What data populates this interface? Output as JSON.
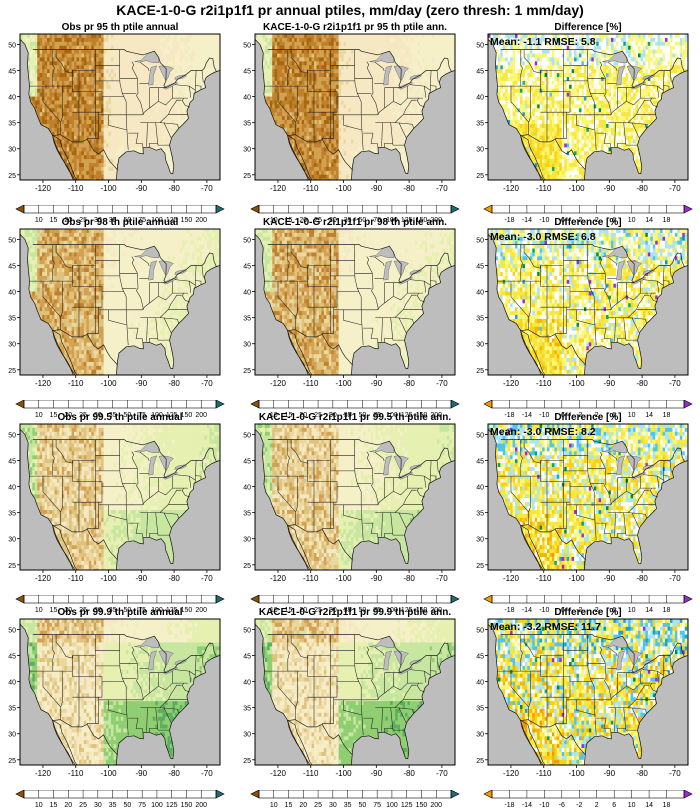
{
  "title": "KACE-1-0-G r2i1p1f1 pr annual ptiles, mm/day (zero thresh: 1 mm/day)",
  "panel_titles": [
    [
      "Obs pr 95 th ptile annual",
      "KACE-1-0-G r2i1p1f1 pr 95 th ptile ann.",
      "Difference [%]"
    ],
    [
      "Obs pr 98 th ptile annual",
      "KACE-1-0-G r2i1p1f1 pr 98 th ptile ann.",
      "Difference [%]"
    ],
    [
      "Obs pr 99.5 th ptile annual",
      "KACE-1-0-G r2i1p1f1 pr 99.5 th ptile ann.",
      "Difference [%]"
    ],
    [
      "Obs pr 99.9 th ptile annual",
      "KACE-1-0-G r2i1p1f1 pr 99.9 th ptile ann.",
      "Difference [%]"
    ]
  ],
  "stats": [
    "Mean: -1.1  RMSE: 5.8",
    "Mean: -3.0  RMSE: 6.8",
    "Mean: -3.0  RMSE: 8.2",
    "Mean: -3.2  RMSE: 11.7"
  ],
  "colors": {
    "ocean": "#bdbdbd",
    "lakes": "#bdbdbd",
    "border": "#222222"
  },
  "chart_data": {
    "type": "heatmap",
    "map_region": "contiguous United States",
    "lon_ticks": [
      "-120",
      "-110",
      "-100",
      "-90",
      "-80",
      "-70"
    ],
    "lat_ticks": [
      "50",
      "45",
      "40",
      "35",
      "30",
      "25"
    ],
    "lon_range": [
      -127,
      -66
    ],
    "lat_range": [
      24,
      52
    ],
    "columns": [
      "Obs",
      "KACE-1-0-G r2i1p1f1",
      "Difference [%]"
    ],
    "percentiles": [
      "95",
      "98",
      "99.5",
      "99.9"
    ],
    "precip_colorbar": {
      "labels": [
        "10",
        "15",
        "20",
        "25",
        "30",
        "35",
        "50",
        "75",
        "100",
        "125",
        "150",
        "200"
      ],
      "colors": [
        "#8c510a",
        "#a8670d",
        "#bf812d",
        "#d3a150",
        "#dfc27d",
        "#ebd89f",
        "#f6e8c3",
        "#f5f0c8",
        "#e6f0b0",
        "#c7e6a0",
        "#8fcf72",
        "#5aae61",
        "#35978f",
        "#1f6b75"
      ]
    },
    "diff_colorbar": {
      "labels": [
        "-18",
        "-14",
        "-10",
        "-6",
        "-2",
        "2",
        "6",
        "10",
        "14",
        "18"
      ],
      "colors": [
        "#f59a00",
        "#f5b400",
        "#f7d21a",
        "#f7e840",
        "#fbf77a",
        "#ffffff",
        "#a9e5f2",
        "#52c4ea",
        "#1aa2d6",
        "#00a57a",
        "#008c2a",
        "#9a2bd6"
      ]
    },
    "difference_stats": [
      {
        "percentile": "95",
        "mean": -1.1,
        "rmse": 5.8
      },
      {
        "percentile": "98",
        "mean": -3.0,
        "rmse": 6.8
      },
      {
        "percentile": "99.5",
        "mean": -3.0,
        "rmse": 8.2
      },
      {
        "percentile": "99.9",
        "mean": -3.2,
        "rmse": 11.7
      }
    ]
  }
}
